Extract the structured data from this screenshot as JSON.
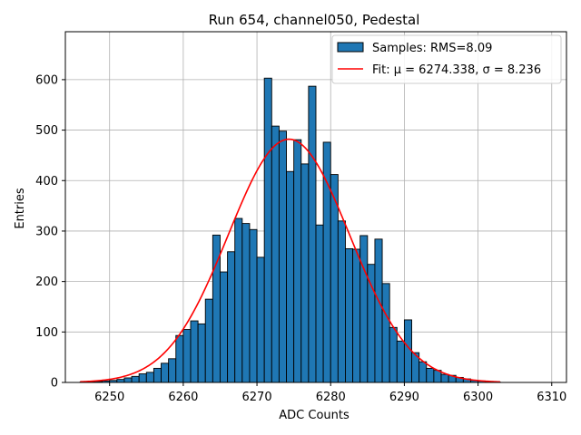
{
  "chart_data": {
    "type": "bar",
    "title": "Run 654, channel050, Pedestal",
    "xlabel": "ADC Counts",
    "ylabel": "Entries",
    "xlim": [
      6244,
      6312
    ],
    "ylim": [
      0,
      695
    ],
    "xticks": [
      6250,
      6260,
      6270,
      6280,
      6290,
      6300,
      6310
    ],
    "yticks": [
      0,
      100,
      200,
      300,
      400,
      500,
      600
    ],
    "grid": true,
    "legend_position": "top-right",
    "bin_width": 1,
    "histogram": {
      "name": "Samples: RMS=8.09",
      "color": "#1f77b4",
      "edgecolor": "#000000",
      "bins": [
        6246,
        6247,
        6248,
        6249,
        6250,
        6251,
        6252,
        6253,
        6254,
        6255,
        6256,
        6257,
        6258,
        6259,
        6260,
        6261,
        6262,
        6263,
        6264,
        6265,
        6266,
        6267,
        6268,
        6269,
        6270,
        6271,
        6272,
        6273,
        6274,
        6275,
        6276,
        6277,
        6278,
        6279,
        6280,
        6281,
        6282,
        6283,
        6284,
        6285,
        6286,
        6287,
        6288,
        6289,
        6290,
        6291,
        6292,
        6293,
        6294,
        6295,
        6296,
        6297,
        6298,
        6299,
        6300,
        6301,
        6302
      ],
      "values": [
        1,
        1,
        2,
        3,
        4,
        6,
        9,
        12,
        17,
        20,
        28,
        38,
        47,
        93,
        105,
        122,
        116,
        165,
        292,
        219,
        259,
        325,
        315,
        303,
        248,
        603,
        508,
        498,
        418,
        481,
        433,
        587,
        312,
        476,
        412,
        320,
        265,
        264,
        291,
        234,
        284,
        196,
        109,
        82,
        124,
        59,
        41,
        28,
        24,
        16,
        14,
        10,
        7,
        4,
        3,
        2,
        1
      ]
    },
    "fit": {
      "name": "Fit: μ = 6274.338, σ = 8.236",
      "mu": 6274.338,
      "sigma": 8.236,
      "amplitude": 482,
      "x_range": [
        6246,
        6303
      ],
      "color": "#ff0000"
    }
  }
}
